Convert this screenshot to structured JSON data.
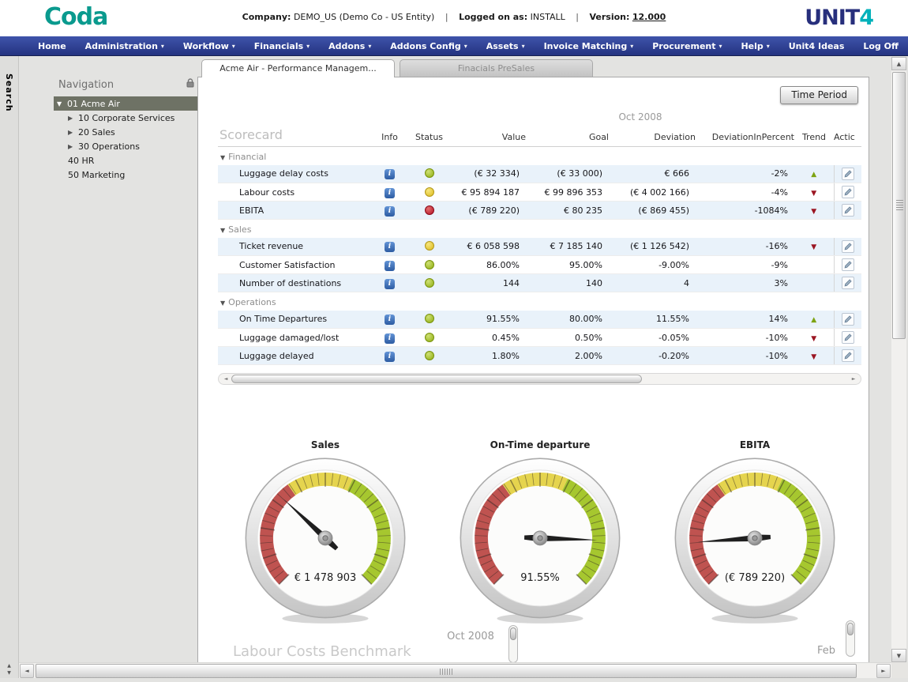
{
  "header": {
    "logo": "Coda",
    "company_label": "Company:",
    "company": "DEMO_US",
    "entity": "(Demo Co - US Entity)",
    "separator": "|",
    "logged_label": "Logged on as:",
    "user": "INSTALL",
    "version_label": "Version:",
    "version": "12.000",
    "brand_main": "UNIT",
    "brand_accent": "4"
  },
  "menu": {
    "items": [
      {
        "label": "Home",
        "dropdown": false
      },
      {
        "label": "Administration",
        "dropdown": true
      },
      {
        "label": "Workflow",
        "dropdown": true
      },
      {
        "label": "Financials",
        "dropdown": true
      },
      {
        "label": "Addons",
        "dropdown": true
      },
      {
        "label": "Addons Config",
        "dropdown": true
      },
      {
        "label": "Assets",
        "dropdown": true
      },
      {
        "label": "Invoice Matching",
        "dropdown": true
      },
      {
        "label": "Procurement",
        "dropdown": true
      },
      {
        "label": "Help",
        "dropdown": true
      },
      {
        "label": "Unit4 Ideas",
        "dropdown": false
      },
      {
        "label": "Log Off",
        "dropdown": false
      }
    ]
  },
  "side": {
    "search_label": "Search"
  },
  "nav_panel": {
    "title": "Navigation",
    "items": [
      {
        "label": "01 Acme Air",
        "selected": true,
        "expanded": true
      },
      {
        "label": "10 Corporate Services",
        "expandable": true
      },
      {
        "label": "20 Sales",
        "expandable": true
      },
      {
        "label": "30 Operations",
        "expandable": true
      },
      {
        "label": "40 HR",
        "leaf": true
      },
      {
        "label": "50 Marketing",
        "leaf": true
      }
    ]
  },
  "tabs": [
    {
      "label": "Acme Air - Performance Managem...",
      "active": true
    },
    {
      "label": "Finacials PreSales",
      "active": false
    }
  ],
  "toolbar": {
    "time_period_label": "Time Period"
  },
  "scorecard": {
    "title": "Scorecard",
    "period": "Oct 2008",
    "columns": [
      "Info",
      "Status",
      "Value",
      "Goal",
      "Deviation",
      "DeviationInPercent",
      "Trend",
      "Actic"
    ],
    "sections": [
      {
        "name": "Financial",
        "rows": [
          {
            "name": "Luggage delay costs",
            "status": "green",
            "value": "(€ 32 334)",
            "goal": "(€ 33 000)",
            "deviation": "€ 666",
            "deviation_pct": "-2%",
            "trend": "up"
          },
          {
            "name": "Labour costs",
            "status": "yellow",
            "value": "€ 95 894 187",
            "goal": "€ 99 896 353",
            "deviation": "(€ 4 002 166)",
            "deviation_pct": "-4%",
            "trend": "down"
          },
          {
            "name": "EBITA",
            "status": "red",
            "value": "(€ 789 220)",
            "goal": "€ 80 235",
            "deviation": "(€ 869 455)",
            "deviation_pct": "-1084%",
            "trend": "down"
          }
        ]
      },
      {
        "name": "Sales",
        "rows": [
          {
            "name": "Ticket revenue",
            "status": "yellow",
            "value": "€ 6 058 598",
            "goal": "€ 7 185 140",
            "deviation": "(€ 1 126 542)",
            "deviation_pct": "-16%",
            "trend": "down"
          },
          {
            "name": "Customer Satisfaction",
            "status": "green",
            "value": "86.00%",
            "goal": "95.00%",
            "deviation": "-9.00%",
            "deviation_pct": "-9%",
            "trend": "none"
          },
          {
            "name": "Number of destinations",
            "status": "green",
            "value": "144",
            "goal": "140",
            "deviation": "4",
            "deviation_pct": "3%",
            "trend": "none"
          }
        ]
      },
      {
        "name": "Operations",
        "rows": [
          {
            "name": "On Time Departures",
            "status": "green",
            "value": "91.55%",
            "goal": "80.00%",
            "deviation": "11.55%",
            "deviation_pct": "14%",
            "trend": "up"
          },
          {
            "name": "Luggage damaged/lost",
            "status": "green",
            "value": "0.45%",
            "goal": "0.50%",
            "deviation": "-0.05%",
            "deviation_pct": "-10%",
            "trend": "down"
          },
          {
            "name": "Luggage delayed",
            "status": "green",
            "value": "1.80%",
            "goal": "2.00%",
            "deviation": "-0.20%",
            "deviation_pct": "-10%",
            "trend": "down"
          }
        ]
      }
    ]
  },
  "chart_data": [
    {
      "type": "gauge",
      "title": "Sales",
      "value_label": "€ 1 478 903",
      "needle_deg": -47,
      "scale_start_deg": -135,
      "scale_end_deg": 135,
      "bands": [
        {
          "from": -135,
          "to": -35,
          "color": "#bf5350"
        },
        {
          "from": -35,
          "to": 25,
          "color": "#e5d44e"
        },
        {
          "from": 25,
          "to": 135,
          "color": "#a6c72f"
        }
      ]
    },
    {
      "type": "gauge",
      "title": "On-Time departure",
      "value_label": "91.55%",
      "needle_deg": 92,
      "scale_start_deg": -135,
      "scale_end_deg": 135,
      "bands": [
        {
          "from": -135,
          "to": -35,
          "color": "#bf5350"
        },
        {
          "from": -35,
          "to": 25,
          "color": "#e5d44e"
        },
        {
          "from": 25,
          "to": 135,
          "color": "#a6c72f"
        }
      ]
    },
    {
      "type": "gauge",
      "title": "EBITA",
      "value_label": "(€ 789 220)",
      "needle_deg": -94,
      "scale_start_deg": -135,
      "scale_end_deg": 135,
      "bands": [
        {
          "from": -135,
          "to": -35,
          "color": "#bf5350"
        },
        {
          "from": -35,
          "to": 25,
          "color": "#e5d44e"
        },
        {
          "from": 25,
          "to": 135,
          "color": "#a6c72f"
        }
      ]
    }
  ],
  "benchmark": {
    "title": "Labour Costs Benchmark",
    "period": "Oct 2008",
    "next_label": "Feb"
  },
  "icons": {
    "caret_down": "▼",
    "caret_right": "▶",
    "menu_arrow": "▾",
    "info": "i",
    "up": "▲",
    "down": "▼",
    "none": "",
    "scroll_up": "▲",
    "scroll_down": "▼",
    "scroll_left": "◄",
    "scroll_right": "►"
  },
  "colors": {
    "status_green": "#8fae10",
    "status_yellow": "#dcba1c",
    "status_red": "#b30e23",
    "trend_up": "#7da312",
    "trend_down": "#9b1522",
    "menu_blue": "#2c3d92",
    "accent_teal": "#0a9a8e",
    "row_alt": "#e9f2fa"
  }
}
